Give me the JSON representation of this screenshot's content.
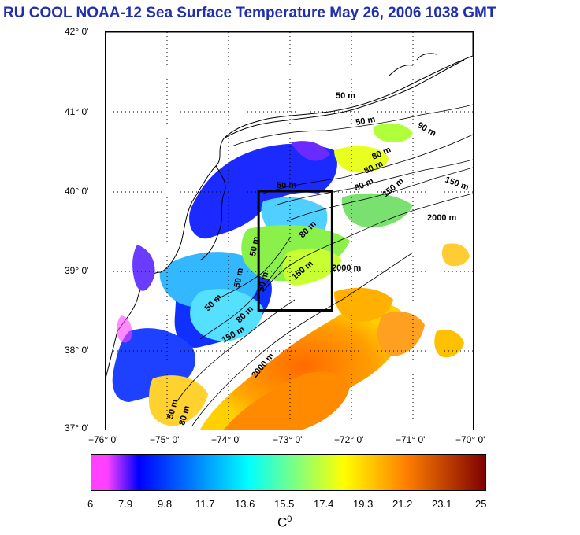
{
  "title": "RU COOL  NOAA-12 Sea Surface Temperature May 26, 2006 1038 GMT",
  "y_ticks": [
    "42° 0'",
    "41° 0'",
    "40° 0'",
    "39° 0'",
    "38° 0'",
    "37° 0'"
  ],
  "x_ticks": [
    "−76° 0'",
    "−75° 0'",
    "−74° 0'",
    "−73° 0'",
    "−72° 0'",
    "−71° 0'",
    "−70° 0'"
  ],
  "colorbar": {
    "labels": [
      "6",
      "7.9",
      "9.8",
      "11.7",
      "13.6",
      "15.5",
      "17.4",
      "19.3",
      "21.2",
      "23.1",
      "25"
    ],
    "unit": "C",
    "unit_sup": "0",
    "colors": [
      "#ff40ff",
      "#0000ff",
      "#00ffff",
      "#ffff00",
      "#ff7f00",
      "#7f0000"
    ]
  },
  "contour_labels": [
    {
      "text": "50 m"
    },
    {
      "text": "50 m"
    },
    {
      "text": "90 m"
    },
    {
      "text": "80 m"
    },
    {
      "text": "80 m"
    },
    {
      "text": "80 m"
    },
    {
      "text": "150 m"
    },
    {
      "text": "150 m"
    },
    {
      "text": "2000 m"
    },
    {
      "text": "80 m"
    },
    {
      "text": "50 m"
    },
    {
      "text": "50 m"
    },
    {
      "text": "50 m"
    },
    {
      "text": "150 m"
    },
    {
      "text": "2000 m"
    },
    {
      "text": "50 m"
    },
    {
      "text": "50 m"
    },
    {
      "text": "80 m"
    },
    {
      "text": "150 m"
    },
    {
      "text": "2000 m"
    },
    {
      "text": "50 m"
    },
    {
      "text": "80 m"
    }
  ],
  "study_box": {
    "lon_min": -73.5,
    "lon_max": -72.3,
    "lat_min": 38.5,
    "lat_max": 40.0
  }
}
